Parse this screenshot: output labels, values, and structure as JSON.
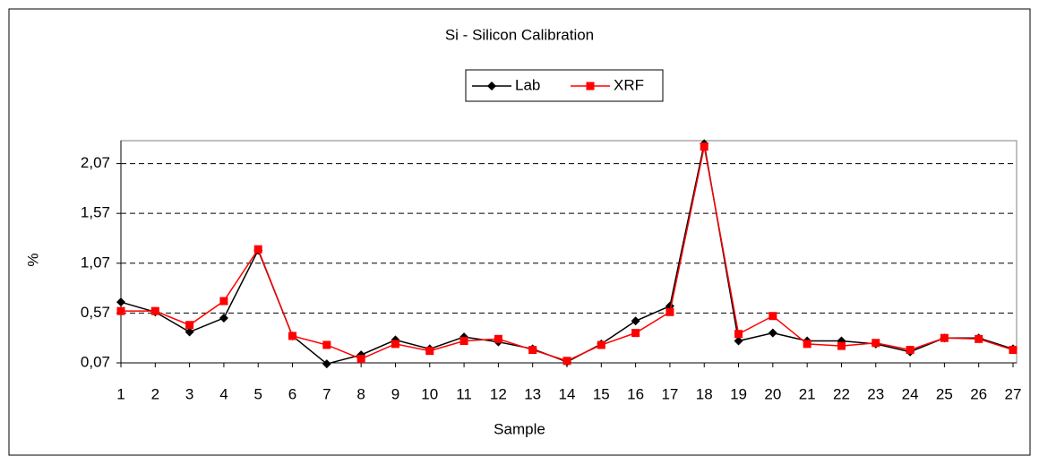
{
  "chart_data": {
    "type": "line",
    "title": "Si - Silicon Calibration",
    "xlabel": "Sample",
    "ylabel": "%",
    "categories": [
      "1",
      "2",
      "3",
      "4",
      "5",
      "6",
      "7",
      "8",
      "9",
      "10",
      "11",
      "12",
      "13",
      "14",
      "15",
      "16",
      "17",
      "18",
      "19",
      "20",
      "21",
      "22",
      "23",
      "24",
      "25",
      "26",
      "27"
    ],
    "series": [
      {
        "name": "Lab",
        "color": "#000000",
        "marker": "diamond",
        "values": [
          0.68,
          0.58,
          0.38,
          0.52,
          1.2,
          0.34,
          0.06,
          0.15,
          0.3,
          0.21,
          0.33,
          0.28,
          0.21,
          0.08,
          0.26,
          0.49,
          0.64,
          2.27,
          0.29,
          0.37,
          0.29,
          0.29,
          0.26,
          0.18,
          0.32,
          0.32,
          0.21
        ]
      },
      {
        "name": "XRF",
        "color": "#ff0000",
        "marker": "square",
        "values": [
          0.59,
          0.59,
          0.45,
          0.69,
          1.21,
          0.34,
          0.25,
          0.11,
          0.26,
          0.19,
          0.29,
          0.31,
          0.2,
          0.09,
          0.25,
          0.37,
          0.58,
          2.24,
          0.36,
          0.54,
          0.26,
          0.24,
          0.27,
          0.2,
          0.32,
          0.31,
          0.2
        ]
      }
    ],
    "ylim": [
      0.07,
      2.3
    ],
    "yticks": [
      {
        "value": 0.07,
        "label": "0,07"
      },
      {
        "value": 0.57,
        "label": "0,57"
      },
      {
        "value": 1.07,
        "label": "1,07"
      },
      {
        "value": 1.57,
        "label": "1,57"
      },
      {
        "value": 2.07,
        "label": "2,07"
      }
    ],
    "grid": true,
    "legend": "top"
  }
}
